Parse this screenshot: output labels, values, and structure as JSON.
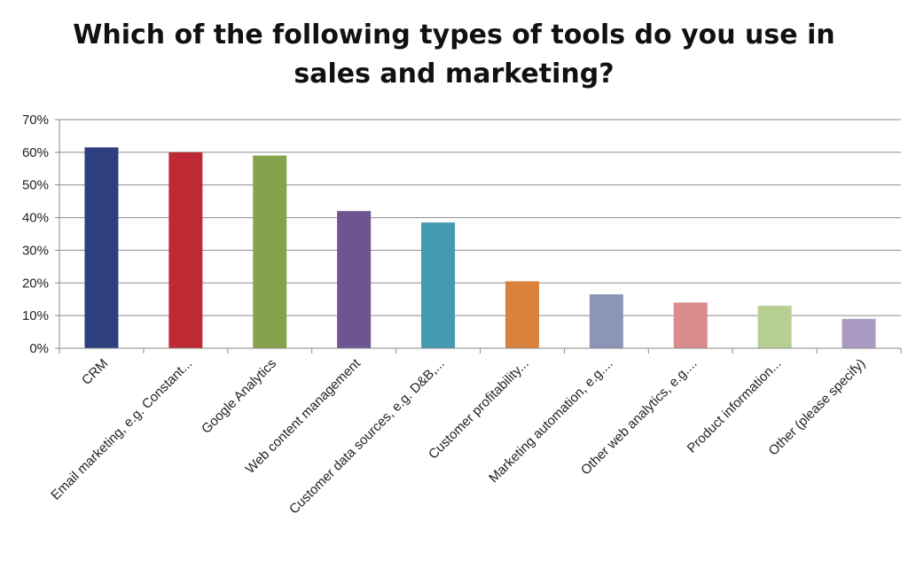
{
  "chart_data": {
    "type": "bar",
    "title_lines": [
      "Which of the following types of tools do you use in",
      "sales and marketing?"
    ],
    "categories": [
      "CRM",
      "Email marketing, e.g. Constant...",
      "Google Analytics",
      "Web content management",
      "Customer data sources, e.g. D&B,...",
      "Customer profitability...",
      "Marketing automation, e.g....",
      "Other web analytics, e.g....",
      "Product information...",
      "Other (please specify)"
    ],
    "values": [
      61.5,
      60,
      59,
      42,
      38.5,
      20.5,
      16.5,
      14,
      13,
      9
    ],
    "colors": [
      "#2E3F7F",
      "#BE2A33",
      "#85A34D",
      "#6E5491",
      "#4399AE",
      "#D9823D",
      "#8C94B8",
      "#D98B8D",
      "#B8CF94",
      "#A99BC4"
    ],
    "ylim": [
      0,
      70
    ],
    "yticks": [
      "0%",
      "10%",
      "20%",
      "30%",
      "40%",
      "50%",
      "60%",
      "70%"
    ],
    "grid": true,
    "legend": "none"
  }
}
